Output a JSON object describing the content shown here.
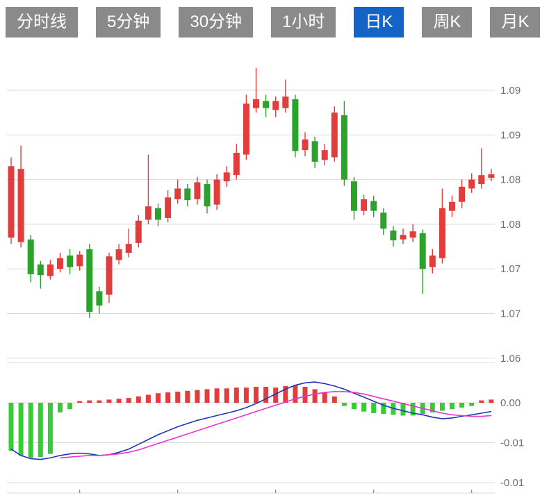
{
  "toolbar": {
    "tabs": [
      {
        "name": "tab-time-line",
        "label": "分时线",
        "active": false
      },
      {
        "name": "tab-5min",
        "label": "5分钟",
        "active": false
      },
      {
        "name": "tab-30min",
        "label": "30分钟",
        "active": false
      },
      {
        "name": "tab-1hour",
        "label": "1小时",
        "active": false
      },
      {
        "name": "tab-daily-k",
        "label": "日K",
        "active": true
      },
      {
        "name": "tab-weekly-k",
        "label": "周K",
        "active": false
      },
      {
        "name": "tab-monthly-k",
        "label": "月K",
        "active": false
      }
    ],
    "colors": {
      "tab_bg": "#8a8a8a",
      "tab_active_bg": "#1464c8",
      "tab_text": "#ffffff"
    }
  },
  "chart_data": {
    "type": "candlestick",
    "title": "",
    "legend": "none",
    "grid": "horizontal",
    "axis_position": "right",
    "price_axis": {
      "gridlines": [
        {
          "value": 1.09,
          "label": "1.09"
        },
        {
          "value": 1.085,
          "label": "1.09"
        },
        {
          "value": 1.08,
          "label": "1.08"
        },
        {
          "value": 1.075,
          "label": "1.08"
        },
        {
          "value": 1.07,
          "label": "1.07"
        },
        {
          "value": 1.065,
          "label": "1.07"
        },
        {
          "value": 1.06,
          "label": "1.06"
        }
      ]
    },
    "macd_axis": {
      "gridlines": [
        {
          "value": 0.005,
          "label": ""
        },
        {
          "value": 0.0,
          "label": "0.00"
        },
        {
          "value": -0.005,
          "label": "-0.01"
        },
        {
          "value": -0.01,
          "label": "-0.01"
        }
      ]
    },
    "candles_ohlc": [
      [
        1.0735,
        1.0825,
        1.0728,
        1.0815
      ],
      [
        1.073,
        1.0838,
        1.0724,
        1.0812
      ],
      [
        1.0733,
        1.0738,
        1.0685,
        1.0694
      ],
      [
        1.0705,
        1.0709,
        1.0678,
        1.0693
      ],
      [
        1.0692,
        1.071,
        1.0688,
        1.0705
      ],
      [
        1.07,
        1.0718,
        1.0696,
        1.0712
      ],
      [
        1.0715,
        1.0722,
        1.0694,
        1.0702
      ],
      [
        1.0703,
        1.072,
        1.0698,
        1.0716
      ],
      [
        1.0722,
        1.0728,
        1.0645,
        1.0652
      ],
      [
        1.0675,
        1.068,
        1.065,
        1.0659
      ],
      [
        1.0671,
        1.0718,
        1.0662,
        1.0714
      ],
      [
        1.071,
        1.0728,
        1.0705,
        1.0722
      ],
      [
        1.0718,
        1.0745,
        1.0713,
        1.0728
      ],
      [
        1.0729,
        1.076,
        1.0724,
        1.0754
      ],
      [
        1.0755,
        1.0828,
        1.075,
        1.077
      ],
      [
        1.0768,
        1.0773,
        1.0748,
        1.0755
      ],
      [
        1.0757,
        1.0788,
        1.0752,
        1.078
      ],
      [
        1.0778,
        1.08,
        1.0773,
        1.079
      ],
      [
        1.079,
        1.0795,
        1.077,
        1.0777
      ],
      [
        1.0778,
        1.0803,
        1.0772,
        1.0797
      ],
      [
        1.0795,
        1.08,
        1.0762,
        1.077
      ],
      [
        1.0772,
        1.0806,
        1.0766,
        1.08
      ],
      [
        1.0798,
        1.0815,
        1.0792,
        1.0808
      ],
      [
        1.0805,
        1.084,
        1.08,
        1.083
      ],
      [
        1.0828,
        1.0895,
        1.0822,
        1.0885
      ],
      [
        1.088,
        1.0925,
        1.0875,
        1.089
      ],
      [
        1.0888,
        1.0895,
        1.087,
        1.088
      ],
      [
        1.0878,
        1.0893,
        1.087,
        1.0888
      ],
      [
        1.088,
        1.0912,
        1.0875,
        1.0893
      ],
      [
        1.089,
        1.0895,
        1.0825,
        1.0832
      ],
      [
        1.0833,
        1.0853,
        1.0826,
        1.0845
      ],
      [
        1.0843,
        1.0848,
        1.0813,
        1.082
      ],
      [
        1.0822,
        1.084,
        1.0816,
        1.0833
      ],
      [
        1.0825,
        1.0882,
        1.082,
        1.0875
      ],
      [
        1.0872,
        1.0888,
        1.0793,
        1.08
      ],
      [
        1.0798,
        1.0803,
        1.0755,
        1.0765
      ],
      [
        1.0765,
        1.0783,
        1.076,
        1.0778
      ],
      [
        1.0776,
        1.0782,
        1.0758,
        1.0765
      ],
      [
        1.0763,
        1.0768,
        1.0738,
        1.0745
      ],
      [
        1.0743,
        1.0748,
        1.0725,
        1.0732
      ],
      [
        1.0733,
        1.0745,
        1.0728,
        1.0738
      ],
      [
        1.0735,
        1.075,
        1.073,
        1.0742
      ],
      [
        1.074,
        1.0744,
        1.0672,
        1.07
      ],
      [
        1.0702,
        1.0722,
        1.0695,
        1.0715
      ],
      [
        1.0712,
        1.079,
        1.0706,
        1.0768
      ],
      [
        1.0765,
        1.0782,
        1.0758,
        1.0775
      ],
      [
        1.0775,
        1.08,
        1.0768,
        1.0792
      ],
      [
        1.079,
        1.0807,
        1.0785,
        1.08
      ],
      [
        1.0795,
        1.0835,
        1.079,
        1.0805
      ],
      [
        1.0802,
        1.0812,
        1.0798,
        1.0806
      ]
    ],
    "macd": {
      "histogram": [
        -0.006,
        -0.0066,
        -0.0069,
        -0.0068,
        -0.0064,
        -0.0012,
        -0.0008,
        0.0002,
        0.0003,
        0.0003,
        0.0004,
        0.0005,
        0.0006,
        0.0008,
        0.001,
        0.0012,
        0.0013,
        0.0014,
        0.0015,
        0.0016,
        0.0017,
        0.0018,
        0.0018,
        0.0019,
        0.0019,
        0.002,
        0.002,
        0.0019,
        0.0021,
        0.0022,
        0.002,
        0.0017,
        0.0013,
        0.0008,
        -0.0004,
        -0.0008,
        -0.0011,
        -0.0013,
        -0.0014,
        -0.0015,
        -0.0016,
        -0.0016,
        -0.0014,
        -0.0012,
        -0.001,
        -0.0008,
        -0.0006,
        -0.0004,
        0.0003,
        0.0004
      ],
      "dif": [
        -0.0058,
        -0.0066,
        -0.007,
        -0.0071,
        -0.0069,
        -0.0066,
        -0.0064,
        -0.0063,
        -0.0064,
        -0.0066,
        -0.0065,
        -0.0062,
        -0.0058,
        -0.0052,
        -0.0046,
        -0.004,
        -0.0035,
        -0.003,
        -0.0026,
        -0.0022,
        -0.0019,
        -0.0016,
        -0.0013,
        -0.001,
        -0.0006,
        -0.0001,
        0.0005,
        0.0011,
        0.0017,
        0.0022,
        0.0025,
        0.0026,
        0.0024,
        0.0021,
        0.0017,
        0.0012,
        0.0007,
        0.0002,
        -0.0003,
        -0.0007,
        -0.001,
        -0.0013,
        -0.0015,
        -0.0018,
        -0.002,
        -0.0019,
        -0.0017,
        -0.0015,
        -0.0013,
        -0.0011
      ],
      "dea": [
        null,
        null,
        null,
        null,
        null,
        -0.0069,
        -0.0068,
        -0.0067,
        -0.0066,
        -0.0066,
        -0.0065,
        -0.0064,
        -0.0062,
        -0.0059,
        -0.0055,
        -0.0051,
        -0.0047,
        -0.0043,
        -0.0039,
        -0.0035,
        -0.0031,
        -0.0027,
        -0.0023,
        -0.0019,
        -0.0015,
        -0.0011,
        -0.0007,
        -0.0003,
        0.0001,
        0.0005,
        0.0008,
        0.0011,
        0.0013,
        0.0014,
        0.0014,
        0.0013,
        0.0011,
        0.0008,
        0.0005,
        0.0002,
        -0.0001,
        -0.0004,
        -0.0007,
        -0.001,
        -0.0013,
        -0.0015,
        -0.0016,
        -0.0017,
        -0.0017,
        -0.0016
      ]
    },
    "colors": {
      "up": "#e23d3d",
      "down": "#2ca12c",
      "hist_up": "#e23d3d",
      "hist_down": "#35cc35",
      "dif_line": "#2233bb",
      "dea_line": "#e833cc",
      "grid": "#d9d9d9",
      "axis_label": "#6f6f6f"
    }
  }
}
